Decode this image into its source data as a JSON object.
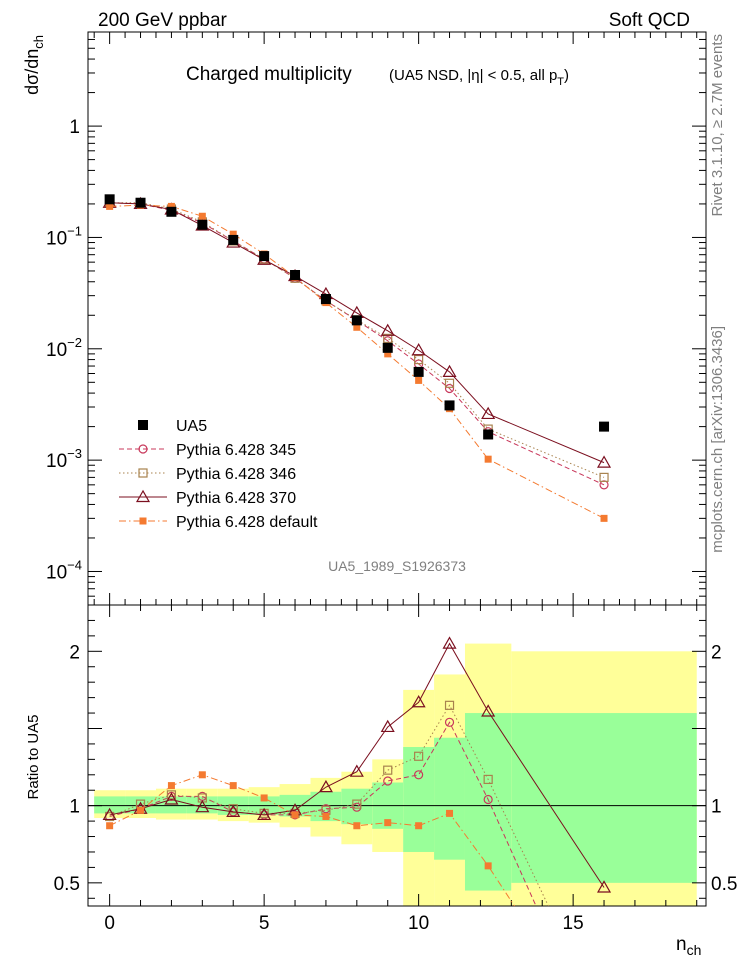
{
  "header": {
    "left": "200 GeV ppbar",
    "right": "Soft QCD"
  },
  "side_text": {
    "rivet": "Rivet 3.1.10, ≥ 2.7M events",
    "mcplots": "mcplots.cern.ch [arXiv:1306.3436]"
  },
  "chart_data": [
    {
      "type": "scatter",
      "panel": "main",
      "title_main": "Charged multiplicity",
      "title_detail_prefix": "(UA5 NSD, |η| < 0.5, all p",
      "title_detail_sub": "T",
      "title_detail_suffix": ")",
      "ylabel": "dσ/dn",
      "ylabel_sub": "ch",
      "yscale": "log",
      "ylim": [
        5e-05,
        7
      ],
      "xlim": [
        -0.7,
        19.3
      ],
      "watermark": "UA5_1989_S1926373",
      "yticks": [
        {
          "value": 1,
          "base": "1",
          "exp": ""
        },
        {
          "value": 0.1,
          "base": "10",
          "exp": "−1"
        },
        {
          "value": 0.01,
          "base": "10",
          "exp": "−2"
        },
        {
          "value": 0.001,
          "base": "10",
          "exp": "−3"
        },
        {
          "value": 0.0001,
          "base": "10",
          "exp": "−4"
        }
      ],
      "legend": {
        "placement": "bottom-left"
      },
      "series": [
        {
          "name": "UA5",
          "color": "#000000",
          "marker": "square-filled",
          "line": "none",
          "x": [
            0,
            1,
            2,
            3,
            4,
            5,
            6,
            7,
            8,
            9,
            10,
            11,
            12.25,
            16
          ],
          "y": [
            0.22,
            0.205,
            0.17,
            0.13,
            0.095,
            0.068,
            0.046,
            0.028,
            0.018,
            0.0102,
            0.0062,
            0.0031,
            0.0017,
            0.002
          ]
        },
        {
          "name": "Pythia 6.428 345",
          "color": "#c8385b",
          "marker": "circle-open",
          "line": "dashed",
          "x": [
            0,
            1,
            2,
            3,
            4,
            5,
            6,
            7,
            8,
            9,
            10,
            11,
            12.25,
            16
          ],
          "y": [
            0.205,
            0.2,
            0.175,
            0.135,
            0.093,
            0.064,
            0.043,
            0.027,
            0.018,
            0.0118,
            0.0073,
            0.0044,
            0.0018,
            0.0006
          ]
        },
        {
          "name": "Pythia 6.428 346",
          "color": "#a8824e",
          "marker": "square-open",
          "line": "dotted",
          "x": [
            0,
            1,
            2,
            3,
            4,
            5,
            6,
            7,
            8,
            9,
            10,
            11,
            12.25,
            16
          ],
          "y": [
            0.205,
            0.205,
            0.18,
            0.138,
            0.093,
            0.064,
            0.043,
            0.027,
            0.0182,
            0.0124,
            0.008,
            0.0049,
            0.0019,
            0.0007
          ]
        },
        {
          "name": "Pythia 6.428 370",
          "color": "#7b0f1f",
          "marker": "triangle-open",
          "line": "solid",
          "x": [
            0,
            1,
            2,
            3,
            4,
            5,
            6,
            7,
            8,
            9,
            10,
            11,
            12.25,
            16
          ],
          "y": [
            0.205,
            0.2,
            0.178,
            0.128,
            0.09,
            0.063,
            0.045,
            0.031,
            0.021,
            0.0145,
            0.0097,
            0.0062,
            0.0026,
            0.00095
          ]
        },
        {
          "name": "Pythia 6.428 default",
          "color": "#f47a30",
          "marker": "square-filled-small",
          "line": "dashdot",
          "x": [
            0,
            1,
            2,
            3,
            4,
            5,
            6,
            7,
            8,
            9,
            10,
            11,
            12.25,
            16
          ],
          "y": [
            0.19,
            0.195,
            0.19,
            0.155,
            0.107,
            0.071,
            0.044,
            0.026,
            0.0156,
            0.009,
            0.0052,
            0.0029,
            0.00102,
            0.0003
          ]
        }
      ]
    },
    {
      "type": "scatter",
      "panel": "ratio",
      "ylabel": "Ratio to UA5",
      "xlabel": "n",
      "xlabel_sub": "ch",
      "ylim": [
        0.35,
        2.3
      ],
      "xlim": [
        -0.7,
        19.3
      ],
      "xticks": [
        0,
        5,
        10,
        15
      ],
      "yticks": [
        0.5,
        1,
        2
      ],
      "reference_line": 1,
      "bands": [
        {
          "x0": -0.5,
          "x1": 0.5,
          "yellow": [
            0.92,
            1.1
          ],
          "green": [
            0.95,
            1.06
          ]
        },
        {
          "x0": 0.5,
          "x1": 1.5,
          "yellow": [
            0.92,
            1.1
          ],
          "green": [
            0.95,
            1.06
          ]
        },
        {
          "x0": 1.5,
          "x1": 2.5,
          "yellow": [
            0.91,
            1.11
          ],
          "green": [
            0.95,
            1.06
          ]
        },
        {
          "x0": 2.5,
          "x1": 3.5,
          "yellow": [
            0.91,
            1.11
          ],
          "green": [
            0.95,
            1.06
          ]
        },
        {
          "x0": 3.5,
          "x1": 4.5,
          "yellow": [
            0.9,
            1.11
          ],
          "green": [
            0.94,
            1.06
          ]
        },
        {
          "x0": 4.5,
          "x1": 5.5,
          "yellow": [
            0.89,
            1.12
          ],
          "green": [
            0.94,
            1.06
          ]
        },
        {
          "x0": 5.5,
          "x1": 6.5,
          "yellow": [
            0.86,
            1.14
          ],
          "green": [
            0.93,
            1.07
          ]
        },
        {
          "x0": 6.5,
          "x1": 7.5,
          "yellow": [
            0.8,
            1.18
          ],
          "green": [
            0.9,
            1.09
          ]
        },
        {
          "x0": 7.5,
          "x1": 8.5,
          "yellow": [
            0.75,
            1.22
          ],
          "green": [
            0.88,
            1.11
          ]
        },
        {
          "x0": 8.5,
          "x1": 9.5,
          "yellow": [
            0.7,
            1.3
          ],
          "green": [
            0.85,
            1.15
          ]
        },
        {
          "x0": 9.5,
          "x1": 10.5,
          "yellow": [
            0.35,
            1.75
          ],
          "green": [
            0.7,
            1.38
          ]
        },
        {
          "x0": 10.5,
          "x1": 11.5,
          "yellow": [
            0.35,
            1.85
          ],
          "green": [
            0.65,
            1.44
          ]
        },
        {
          "x0": 11.5,
          "x1": 13,
          "yellow": [
            0.35,
            2.05
          ],
          "green": [
            0.45,
            1.6
          ]
        },
        {
          "x0": 13,
          "x1": 19,
          "yellow": [
            0.35,
            2.0
          ],
          "green": [
            0.5,
            1.6
          ]
        }
      ],
      "series": [
        {
          "name": "UA5",
          "color": "#000000",
          "marker": "none",
          "line": "none",
          "x": [],
          "y": []
        },
        {
          "name": "Pythia 6.428 345",
          "color": "#c8385b",
          "marker": "circle-open",
          "line": "dashed",
          "x": [
            0,
            1,
            2,
            3,
            4,
            5,
            6,
            7,
            8,
            9,
            10,
            11,
            12.25,
            13.8
          ],
          "y": [
            0.93,
            0.98,
            1.06,
            1.06,
            0.96,
            0.94,
            0.94,
            0.98,
            0.99,
            1.16,
            1.2,
            1.54,
            1.04,
            0.35
          ]
        },
        {
          "name": "Pythia 6.428 346",
          "color": "#a8824e",
          "marker": "square-open",
          "line": "dotted",
          "x": [
            0,
            1,
            2,
            3,
            4,
            5,
            6,
            7,
            8,
            9,
            10,
            11,
            12.25,
            14.2
          ],
          "y": [
            0.93,
            1.01,
            1.07,
            1.05,
            0.98,
            0.95,
            0.95,
            0.97,
            1.01,
            1.23,
            1.32,
            1.65,
            1.17,
            0.35
          ]
        },
        {
          "name": "Pythia 6.428 370",
          "color": "#7b0f1f",
          "marker": "triangle-open",
          "line": "solid",
          "x": [
            0,
            1,
            2,
            3,
            4,
            5,
            6,
            7,
            8,
            9,
            10,
            11,
            12.25,
            16
          ],
          "y": [
            0.94,
            0.98,
            1.04,
            0.99,
            0.96,
            0.94,
            0.97,
            1.12,
            1.22,
            1.51,
            1.67,
            2.05,
            1.61,
            0.47
          ]
        },
        {
          "name": "Pythia 6.428 default",
          "color": "#f47a30",
          "marker": "square-filled-small",
          "line": "dashdot",
          "x": [
            0,
            1,
            2,
            3,
            4,
            5,
            6,
            7,
            8,
            9,
            10,
            11,
            12.25,
            13.1
          ],
          "y": [
            0.87,
            0.97,
            1.13,
            1.2,
            1.13,
            1.05,
            0.94,
            0.93,
            0.87,
            0.89,
            0.87,
            0.95,
            0.61,
            0.35
          ]
        }
      ]
    }
  ]
}
